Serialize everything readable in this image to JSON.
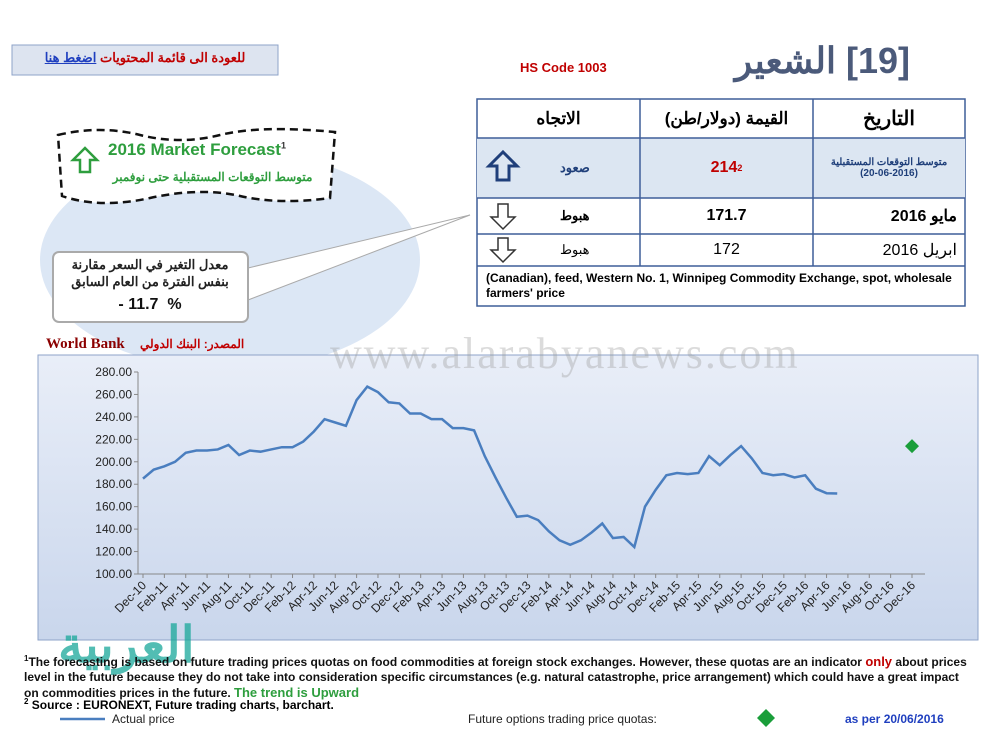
{
  "header": {
    "title": "[19] الشعير",
    "hs_code": "HS Code 1003",
    "back_text": "للعودة الى قائمة المحتويات",
    "back_link": "اضغط هنا"
  },
  "forecast_box": {
    "title": "2016 Market Forecast",
    "note": "1",
    "subtitle": "متوسط التوقعات المستقبلية حتى نوفمبر"
  },
  "callout": {
    "text": "معدل التغير في السعر مقارنة بنفس الفترة من العام السابق",
    "value": "- 11.7  %"
  },
  "table": {
    "headers": [
      "الاتجاه",
      "القيمة (دولار/طن)",
      "التاريخ"
    ],
    "rows": [
      {
        "trend": "صعود",
        "value": "214",
        "value_note": "2",
        "date": "متوسط التوقعات المستقبلية",
        "date_note": "(20-06-2016)"
      },
      {
        "trend": "هبوط",
        "value": "171.7",
        "date": "مايو 2016"
      },
      {
        "trend": "هبوط",
        "value": "172",
        "date": "ابريل 2016"
      }
    ],
    "note": "(Canadian), feed, Western No. 1, Winnipeg Commodity Exchange, spot, wholesale farmers' price"
  },
  "source": {
    "label": "المصدر: البنك الدولي",
    "name": "World Bank"
  },
  "watermark": "www.alarabyanews.com",
  "logo": "العربية",
  "chart_data": {
    "type": "line",
    "categories": [
      "Dec-10",
      null,
      "Feb-11",
      null,
      "Apr-11",
      null,
      "Jun-11",
      null,
      "Aug-11",
      null,
      "Oct-11",
      null,
      "Dec-11",
      null,
      "Feb-12",
      null,
      "Apr-12",
      null,
      "Jun-12",
      null,
      "Aug-12",
      null,
      "Oct-12",
      null,
      "Dec-12",
      null,
      "Feb-13",
      null,
      "Apr-13",
      null,
      "Jun-13",
      null,
      "Aug-13",
      null,
      "Oct-13",
      null,
      "Dec-13",
      null,
      "Feb-14",
      null,
      "Apr-14",
      null,
      "Jun-14",
      null,
      "Aug-14",
      null,
      "Oct-14",
      null,
      "Dec-14",
      null,
      "Feb-15",
      null,
      "Apr-15",
      null,
      "Jun-15",
      null,
      "Aug-15",
      null,
      "Oct-15",
      null,
      "Dec-15",
      null,
      "Feb-16",
      null,
      "Apr-16",
      null,
      "Jun-16",
      null,
      "Aug-16",
      null,
      "Oct-16",
      null,
      "Dec-16"
    ],
    "series": [
      {
        "name": "Actual price",
        "color": "#4a7ebf",
        "values": [
          185,
          193,
          196,
          200,
          208,
          210,
          210,
          211,
          215,
          206,
          210,
          209,
          211,
          213,
          213,
          218,
          227,
          238,
          235,
          232,
          255,
          267,
          262,
          253,
          252,
          243,
          243,
          238,
          238,
          230,
          230,
          228,
          205,
          186,
          168,
          151,
          152,
          148,
          138,
          130,
          126,
          130,
          137,
          145,
          132,
          133,
          124,
          160,
          175,
          188,
          190,
          189,
          190,
          205,
          197,
          206,
          214,
          203,
          190,
          188,
          189,
          186,
          188,
          176,
          172,
          171.7,
          null,
          null,
          null,
          null,
          null,
          null,
          null
        ]
      },
      {
        "name": "Future options trading price quotas:",
        "color": "#1a9e3a",
        "values": [
          null,
          null,
          null,
          null,
          null,
          null,
          null,
          null,
          null,
          null,
          null,
          null,
          null,
          null,
          null,
          null,
          null,
          null,
          null,
          null,
          null,
          null,
          null,
          null,
          null,
          null,
          null,
          null,
          null,
          null,
          null,
          null,
          null,
          null,
          null,
          null,
          null,
          null,
          null,
          null,
          null,
          null,
          null,
          null,
          null,
          null,
          null,
          null,
          null,
          null,
          null,
          null,
          null,
          null,
          null,
          null,
          null,
          null,
          null,
          null,
          null,
          null,
          null,
          null,
          null,
          null,
          null,
          null,
          null,
          null,
          null,
          null,
          214
        ]
      }
    ],
    "ylim": [
      100,
      280
    ],
    "yticks": [
      {
        "value": 100,
        "label": "100.00"
      },
      {
        "value": 120,
        "label": "120.00"
      },
      {
        "value": 140,
        "label": "140.00"
      },
      {
        "value": 160,
        "label": "160.00"
      },
      {
        "value": 180,
        "label": "180.00"
      },
      {
        "value": 200,
        "label": "200.00"
      },
      {
        "value": 220,
        "label": "220.00"
      },
      {
        "value": 240,
        "label": "240.00"
      },
      {
        "value": 260,
        "label": "260.00"
      },
      {
        "value": 280,
        "label": "280.00"
      }
    ],
    "grid": false,
    "as_of": "as per 20/06/2016"
  },
  "footnotes": {
    "note1_mark": "1",
    "note1_text": "The forecasting is based on future trading prices quotas on food commodities at foreign stock exchanges. However, these quotas are an indicator",
    "note1_only": "only",
    "note1_rest": "about prices level in the future because they do not  take into  consideration specific circumstances  (e.g. natural catastrophe, price arrangement) which could have a great impact  on commodities prices in the future.",
    "trend": "The trend is Upward",
    "note2_mark": "2",
    "note2_text": "Source : EURONEXT, Future trading charts, barchart."
  }
}
